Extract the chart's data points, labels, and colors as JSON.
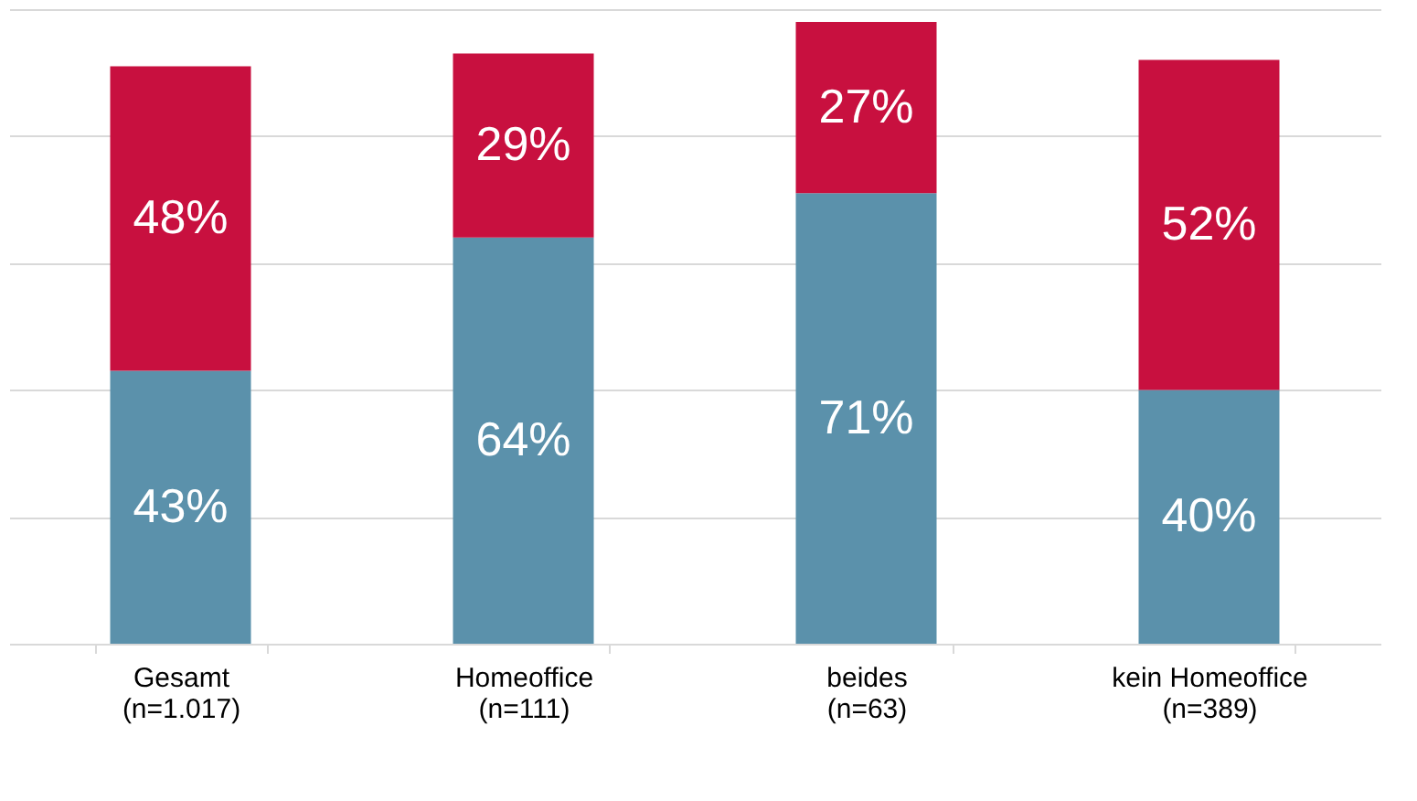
{
  "chart_data": {
    "type": "bar",
    "stacked": true,
    "categories": [
      "Gesamt\n(n=1.017)",
      "Homeoffice\n(n=111)",
      "beides\n(n=63)",
      "kein Homeoffice\n(n=389)"
    ],
    "series": [
      {
        "color": "#5b91ab",
        "values": [
          43,
          64,
          71,
          40
        ],
        "value_labels": [
          "43%",
          "64%",
          "71%",
          "40%"
        ]
      },
      {
        "color": "#c8103f",
        "values": [
          48,
          29,
          27,
          52
        ],
        "value_labels": [
          "48%",
          "29%",
          "27%",
          "52%"
        ]
      }
    ],
    "grid": "y",
    "tick_labels": "x"
  }
}
